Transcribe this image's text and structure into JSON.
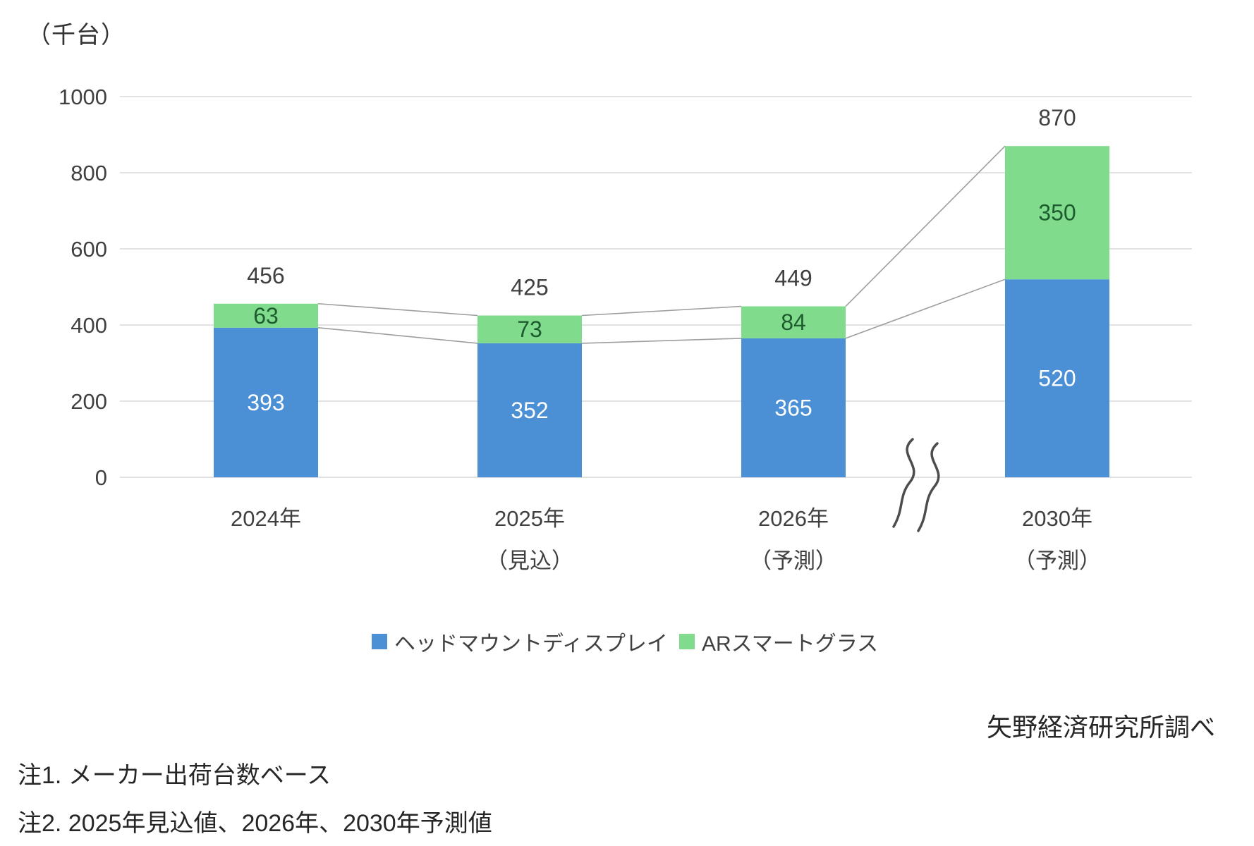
{
  "unit_label": "（千台）",
  "source_label": "矢野経済研究所調べ",
  "notes": [
    "注1. メーカー出荷台数ベース",
    "注2. 2025年見込値、2026年、2030年予測値"
  ],
  "legend": [
    {
      "label": "ヘッドマウントディスプレイ",
      "color": "#4b90d5"
    },
    {
      "label": "ARスマートグラス",
      "color": "#80db8d"
    }
  ],
  "chart_data": {
    "type": "bar",
    "subtype": "stacked-column",
    "title": "",
    "ylabel": "（千台）",
    "categories": [
      "2024年",
      "2025年（見込）",
      "2026年（予測）",
      "2030年（予測）"
    ],
    "category_label_lines": [
      [
        "2024年",
        ""
      ],
      [
        "2025年",
        "（見込）"
      ],
      [
        "2026年",
        "（予測）"
      ],
      [
        "2030年",
        "（予測）"
      ]
    ],
    "series": [
      {
        "name": "ヘッドマウントディスプレイ",
        "color": "#4b90d5",
        "label_color": "#ffffff",
        "values": [
          393,
          352,
          365,
          520
        ]
      },
      {
        "name": "ARスマートグラス",
        "color": "#80db8d",
        "label_color": "#1e5c2f",
        "values": [
          63,
          73,
          84,
          350
        ]
      }
    ],
    "totals": [
      456,
      425,
      449,
      870
    ],
    "ylim": [
      0,
      1000
    ],
    "yticks": [
      0,
      200,
      400,
      600,
      800,
      1000
    ],
    "grid": true,
    "legend_position": "bottom",
    "connector_lines": true,
    "axis_break_after_category": "2026年（予測）",
    "colors": {
      "grid": "#d9d9d9",
      "connector": "#9e9e9e",
      "axis_text": "#404040",
      "total_label": "#404040",
      "break_mark": "#4d4d4d"
    }
  }
}
